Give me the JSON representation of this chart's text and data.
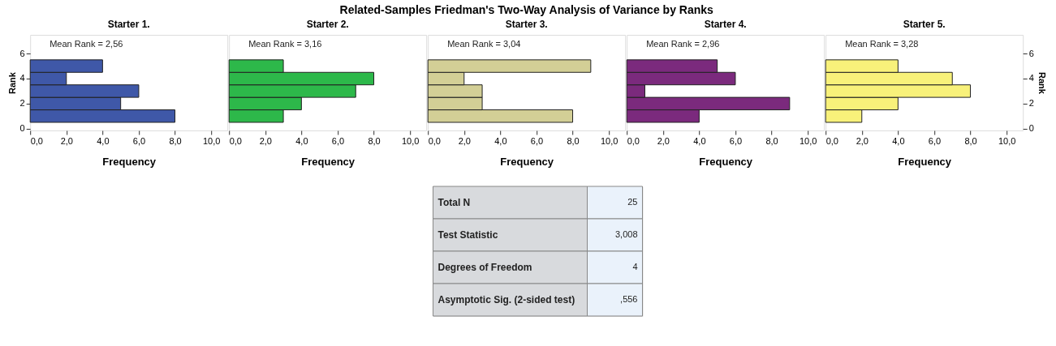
{
  "chart_data": [
    {
      "type": "histogram",
      "orientation": "horizontal",
      "title": "Starter 1.",
      "xlabel": "Frequency",
      "ylabel": "Rank",
      "bins": [
        0.5,
        1.5,
        2.5,
        3.5,
        4.5,
        5.5
      ],
      "values": [
        8,
        5,
        6,
        2,
        4
      ],
      "color": "#3f58a8",
      "xlim": [
        0,
        10.9
      ],
      "xticks": [
        {
          "value": 0,
          "label": "0,0"
        },
        {
          "value": 2,
          "label": "2,0"
        },
        {
          "value": 4,
          "label": "4,0"
        },
        {
          "value": 6,
          "label": "6,0"
        },
        {
          "value": 8,
          "label": "8,0"
        },
        {
          "value": 10,
          "label": "10,0"
        }
      ],
      "ylim": [
        -0.15,
        7.5
      ],
      "yticks": [
        0,
        2,
        4,
        6
      ],
      "annotations": [
        "Mean Rank = 2,56"
      ],
      "grid": false
    },
    {
      "type": "histogram",
      "orientation": "horizontal",
      "title": "Starter 2.",
      "xlabel": "Frequency",
      "bins": [
        0.5,
        1.5,
        2.5,
        3.5,
        4.5,
        5.5
      ],
      "values": [
        3,
        4,
        7,
        8,
        3
      ],
      "color": "#2db84a",
      "xlim": [
        0,
        10.9
      ],
      "xticks": [
        {
          "value": 0,
          "label": "0,0"
        },
        {
          "value": 2,
          "label": "2,0"
        },
        {
          "value": 4,
          "label": "4,0"
        },
        {
          "value": 6,
          "label": "6,0"
        },
        {
          "value": 8,
          "label": "8,0"
        },
        {
          "value": 10,
          "label": "10,0"
        }
      ],
      "ylim": [
        -0.15,
        7.5
      ],
      "tick_labels": "x",
      "annotations": [
        "Mean Rank = 3,16"
      ],
      "grid": false
    },
    {
      "type": "histogram",
      "orientation": "horizontal",
      "title": "Starter 3.",
      "xlabel": "Frequency",
      "bins": [
        0.5,
        1.5,
        2.5,
        3.5,
        4.5,
        5.5
      ],
      "values": [
        8,
        3,
        3,
        2,
        9
      ],
      "color": "#d3cf96",
      "xlim": [
        0,
        10.9
      ],
      "xticks": [
        {
          "value": 0,
          "label": "0,0"
        },
        {
          "value": 2,
          "label": "2,0"
        },
        {
          "value": 4,
          "label": "4,0"
        },
        {
          "value": 6,
          "label": "6,0"
        },
        {
          "value": 8,
          "label": "8,0"
        },
        {
          "value": 10,
          "label": "10,0"
        }
      ],
      "ylim": [
        -0.15,
        7.5
      ],
      "tick_labels": "x",
      "annotations": [
        "Mean Rank = 3,04"
      ],
      "grid": false
    },
    {
      "type": "histogram",
      "orientation": "horizontal",
      "title": "Starter 4.",
      "xlabel": "Frequency",
      "bins": [
        0.5,
        1.5,
        2.5,
        3.5,
        4.5,
        5.5
      ],
      "values": [
        4,
        9,
        1,
        6,
        5
      ],
      "color": "#7b2a7d",
      "xlim": [
        0,
        10.9
      ],
      "xticks": [
        {
          "value": 0,
          "label": "0,0"
        },
        {
          "value": 2,
          "label": "2,0"
        },
        {
          "value": 4,
          "label": "4,0"
        },
        {
          "value": 6,
          "label": "6,0"
        },
        {
          "value": 8,
          "label": "8,0"
        },
        {
          "value": 10,
          "label": "10,0"
        }
      ],
      "ylim": [
        -0.15,
        7.5
      ],
      "tick_labels": "x",
      "annotations": [
        "Mean Rank = 2,96"
      ],
      "grid": false
    },
    {
      "type": "histogram",
      "orientation": "horizontal",
      "title": "Starter 5.",
      "xlabel": "Frequency",
      "ylabel": "Rank",
      "bins": [
        0.5,
        1.5,
        2.5,
        3.5,
        4.5,
        5.5
      ],
      "values": [
        2,
        4,
        8,
        7,
        4
      ],
      "color": "#f8f17a",
      "xlim": [
        0,
        10.9
      ],
      "xticks": [
        {
          "value": 0,
          "label": "0,0"
        },
        {
          "value": 2,
          "label": "2,0"
        },
        {
          "value": 4,
          "label": "4,0"
        },
        {
          "value": 6,
          "label": "6,0"
        },
        {
          "value": 8,
          "label": "8,0"
        },
        {
          "value": 10,
          "label": "10,0"
        }
      ],
      "ylim": [
        -0.15,
        7.5
      ],
      "yticks": [
        0,
        2,
        4,
        6
      ],
      "annotations": [
        "Mean Rank = 3,28"
      ],
      "grid": false
    },
    {
      "type": "other",
      "title": "Related-Samples Friedman's Two-Way Analysis of Variance by Ranks",
      "annotations": [
        "Total N",
        "25",
        "Test Statistic",
        "3,008",
        "Degrees of Freedom",
        "4",
        "Asymptotic Sig. (2-sided test)",
        ",556"
      ]
    }
  ]
}
